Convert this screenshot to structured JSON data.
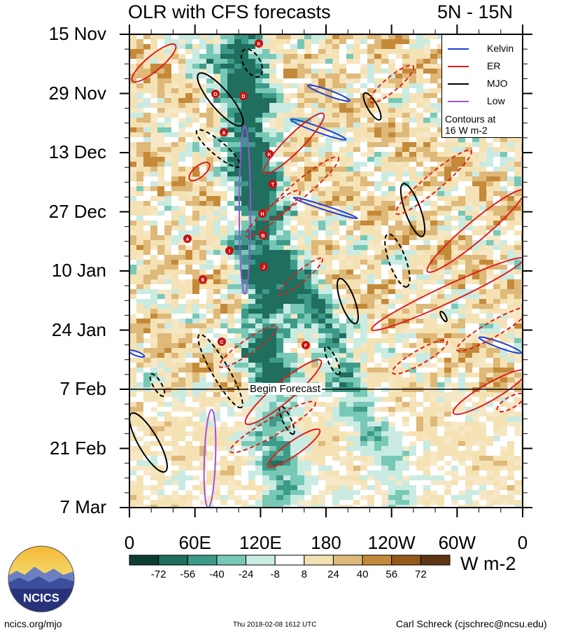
{
  "chart_data": {
    "type": "heatmap",
    "title": "OLR with CFS forecasts",
    "region": "5N - 15N",
    "y_ticks": [
      "15 Nov",
      "29 Nov",
      "13 Dec",
      "27 Dec",
      "10 Jan",
      "24 Jan",
      "7 Feb",
      "21 Feb",
      "7 Mar"
    ],
    "x_ticks": [
      "0",
      "60E",
      "120E",
      "180",
      "120W",
      "60W",
      "0"
    ],
    "forecast_line_label": "Begin Forecast",
    "forecast_start": "7 Feb",
    "colorbar": {
      "units": "W m-2",
      "ticks": [
        "-72",
        "-56",
        "-40",
        "-24",
        "-8",
        "8",
        "24",
        "40",
        "56",
        "72"
      ],
      "colors": [
        "#0d3d33",
        "#1f6e5e",
        "#3d9a88",
        "#78c8b6",
        "#c9ebe2",
        "#ffffff",
        "#f5e2b4",
        "#deb97a",
        "#c48a3a",
        "#945a1c",
        "#5e3616"
      ]
    },
    "legend": {
      "items": [
        {
          "label": "Kelvin",
          "color": "#1f3fd8"
        },
        {
          "label": "ER",
          "color": "#e01e1e"
        },
        {
          "label": "MJO",
          "color": "#000000"
        },
        {
          "label": "Low",
          "color": "#a050e0"
        }
      ],
      "note_line1": "Contours at",
      "note_line2": "16 W m-2",
      "position": "top-right"
    },
    "tc_markers": [
      "K",
      "O",
      "D",
      "A",
      "K",
      "T",
      "H",
      "B",
      "A",
      "I",
      "J",
      "B",
      "C",
      "F"
    ]
  },
  "logo_text": "NCICS",
  "footer": {
    "left": "ncics.org/mjo",
    "middle": "Thu 2018-02-08 1612 UTC",
    "right": "Carl Schreck (cjschrec@ncsu.edu)"
  }
}
